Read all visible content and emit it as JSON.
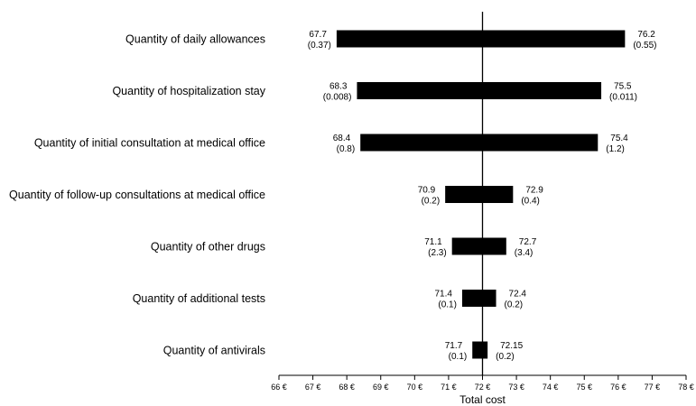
{
  "chart_data": {
    "type": "tornado",
    "title": "",
    "xlabel": "Total cost",
    "ylabel": "",
    "xlim": [
      66,
      78
    ],
    "x_tick_step": 1,
    "tick_suffix": " €",
    "base_value": 72,
    "grid": false,
    "legend": "none",
    "bar_color": "#000000",
    "categories": [
      "Quantity of daily allowances",
      "Quantity of hospitalization stay",
      "Quantity of initial consultation at medical office",
      "Quantity of follow-up consultations at medical office",
      "Quantity of other drugs",
      "Quantity of additional tests",
      "Quantity of antivirals"
    ],
    "bars": [
      {
        "low": 67.7,
        "high": 76.2,
        "low_label": "67.7",
        "low_param": "(0.37)",
        "high_label": "76.2",
        "high_param": "(0.55)"
      },
      {
        "low": 68.3,
        "high": 75.5,
        "low_label": "68.3",
        "low_param": "(0.008)",
        "high_label": "75.5",
        "high_param": "(0.011)"
      },
      {
        "low": 68.4,
        "high": 75.4,
        "low_label": "68.4",
        "low_param": "(0.8)",
        "high_label": "75.4",
        "high_param": "(1.2)"
      },
      {
        "low": 70.9,
        "high": 72.9,
        "low_label": "70.9",
        "low_param": "(0.2)",
        "high_label": "72.9",
        "high_param": "(0.4)"
      },
      {
        "low": 71.1,
        "high": 72.7,
        "low_label": "71.1",
        "low_param": "(2.3)",
        "high_label": "72.7",
        "high_param": "(3.4)"
      },
      {
        "low": 71.4,
        "high": 72.4,
        "low_label": "71.4",
        "low_param": "(0.1)",
        "high_label": "72.4",
        "high_param": "(0.2)"
      },
      {
        "low": 71.7,
        "high": 72.15,
        "low_label": "71.7",
        "low_param": "(0.1)",
        "high_label": "72.15",
        "high_param": "(0.2)"
      }
    ],
    "x_ticks": [
      "66 €",
      "67 €",
      "68 €",
      "69 €",
      "70 €",
      "71 €",
      "72 €",
      "73 €",
      "74 €",
      "75 €",
      "76 €",
      "77 €",
      "78 €"
    ]
  }
}
